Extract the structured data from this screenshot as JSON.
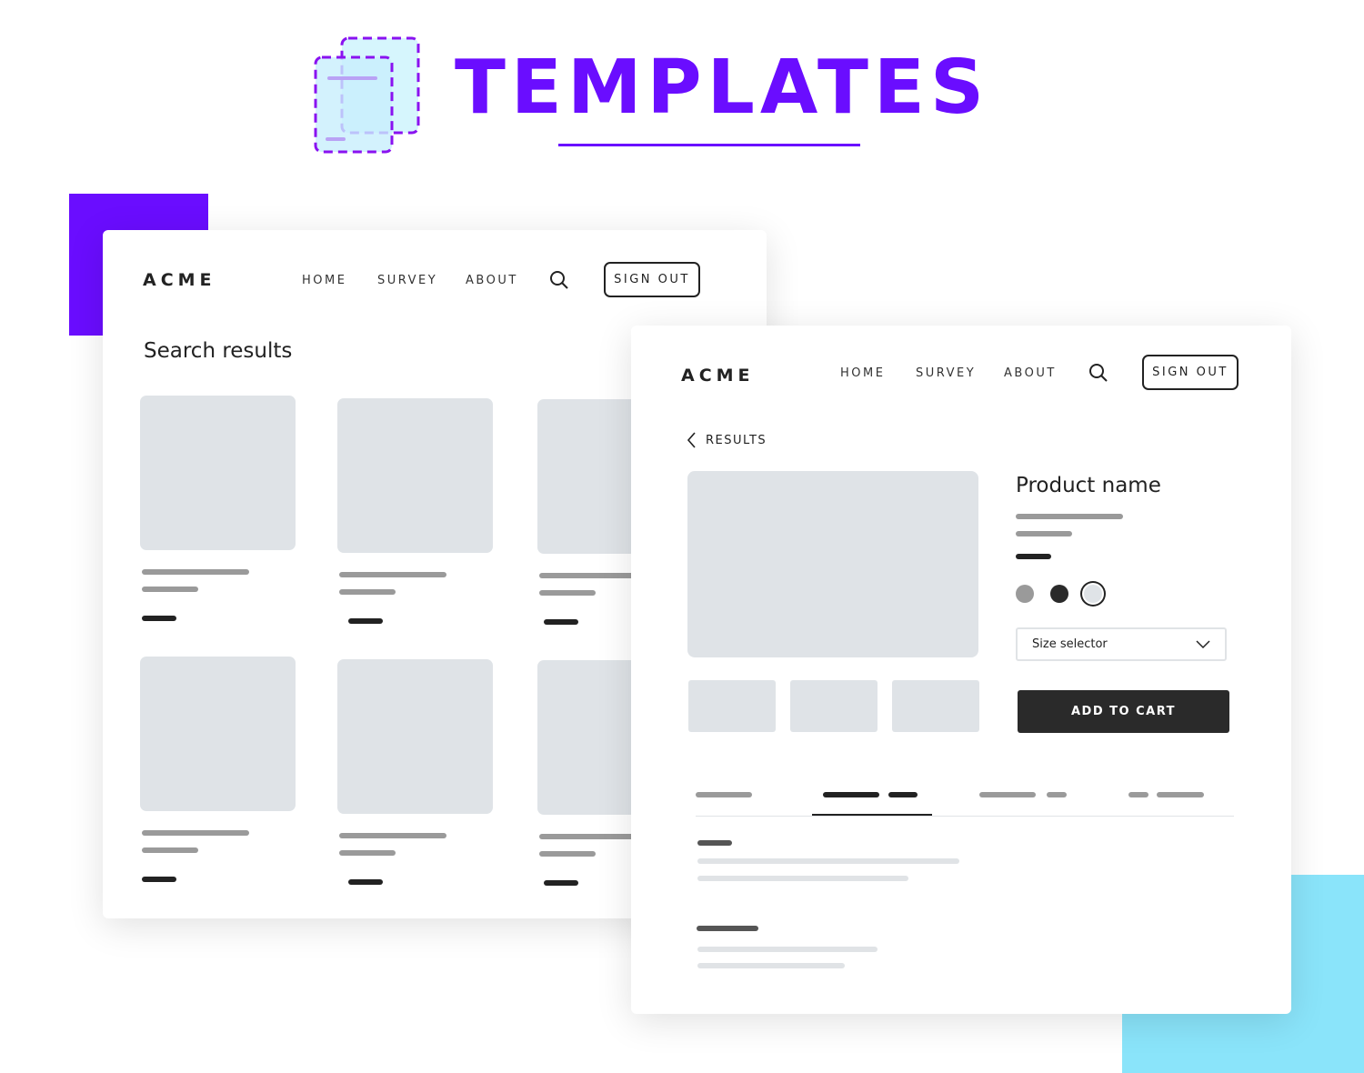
{
  "header": {
    "title": "TEMPLATES",
    "accent": "#6a0dff",
    "secondary": "#8ae4fa",
    "icon": "templates-icon"
  },
  "results_page": {
    "logo": "ACME",
    "nav": [
      "HOME",
      "SURVEY",
      "ABOUT"
    ],
    "sign_out": "SIGN OUT",
    "heading": "Search results"
  },
  "product_page": {
    "logo": "ACME",
    "nav": [
      "HOME",
      "SURVEY",
      "ABOUT"
    ],
    "sign_out": "SIGN OUT",
    "back_label": "RESULTS",
    "product_name": "Product name",
    "size_selector": "Size selector",
    "add_to_cart": "ADD TO CART",
    "swatches": [
      "#9a9a9a",
      "#2a2a2a",
      "#dfe3e7"
    ],
    "selected_swatch": 2,
    "active_tab": 1
  }
}
